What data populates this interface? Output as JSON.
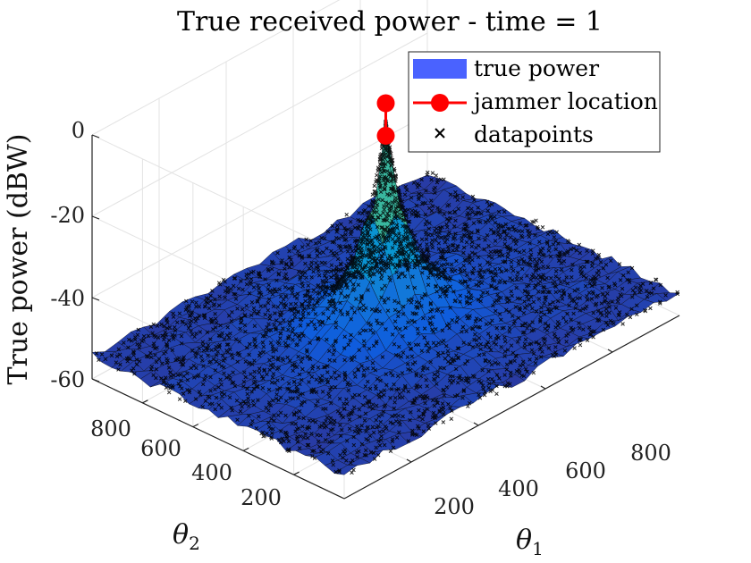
{
  "chart_data": {
    "type": "surface3d",
    "title": "True received power - time = 1",
    "zlabel": "True power (dBW)",
    "xlabel": "θ1",
    "ylabel": "θ2",
    "zlim": [
      -60,
      0
    ],
    "xlim": [
      0,
      1000
    ],
    "ylim": [
      0,
      1000
    ],
    "z_ticks": [
      "0",
      "-20",
      "-40",
      "-60"
    ],
    "x_ticks": [
      "200",
      "400",
      "600",
      "800"
    ],
    "y_ticks": [
      "200",
      "400",
      "600",
      "800"
    ],
    "grid": true,
    "legend": {
      "position": "top-right",
      "entries": [
        {
          "label": "true power",
          "color": "#4a62ff",
          "kind": "patch"
        },
        {
          "label": "jammer location",
          "color": "#ff0000",
          "kind": "line-marker"
        },
        {
          "label": "datapoints",
          "color": "#000000",
          "kind": "x-marker"
        }
      ]
    },
    "jammer": {
      "x": 500,
      "y": 500,
      "z_top": 0,
      "z_bottom": -8
    },
    "surface": {
      "model": "peak",
      "peak_x": 500,
      "peak_y": 500,
      "peak_z": -8,
      "floor_z": -55,
      "colormap": "parula"
    }
  }
}
